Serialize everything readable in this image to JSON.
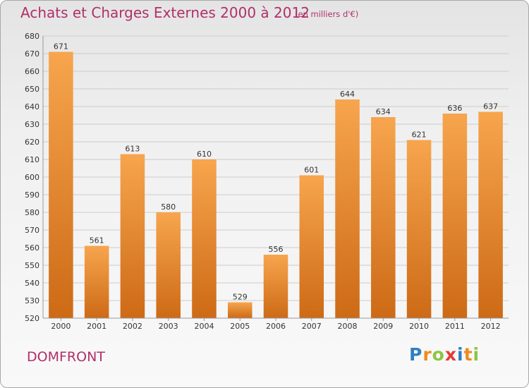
{
  "title": "Achats et Charges Externes 2000 à 2012",
  "subtitle": "(en milliers d'€)",
  "place": "DOMFRONT",
  "brand": "Proxiti",
  "brand_letters": [
    {
      "ch": "P",
      "color": "#2f7fc1"
    },
    {
      "ch": "r",
      "color": "#f08a1c"
    },
    {
      "ch": "o",
      "color": "#8cc63f"
    },
    {
      "ch": "x",
      "color": "#e53935"
    },
    {
      "ch": "i",
      "color": "#2f7fc1"
    },
    {
      "ch": "t",
      "color": "#f08a1c"
    },
    {
      "ch": "i",
      "color": "#8cc63f"
    }
  ],
  "colors": {
    "title": "#b0306a",
    "bar_top": "#f7a54e",
    "bar_bottom": "#cd6a16",
    "grid": "#cccccc"
  },
  "chart_data": {
    "type": "bar",
    "categories": [
      "2000",
      "2001",
      "2002",
      "2003",
      "2004",
      "2005",
      "2006",
      "2007",
      "2008",
      "2009",
      "2010",
      "2011",
      "2012"
    ],
    "values": [
      671,
      561,
      613,
      580,
      610,
      529,
      556,
      601,
      644,
      634,
      621,
      636,
      637
    ],
    "ylim": [
      520,
      680
    ],
    "yticks": [
      520,
      530,
      540,
      550,
      560,
      570,
      580,
      590,
      600,
      610,
      620,
      630,
      640,
      650,
      660,
      670,
      680
    ],
    "grid": true,
    "legend": "none"
  }
}
